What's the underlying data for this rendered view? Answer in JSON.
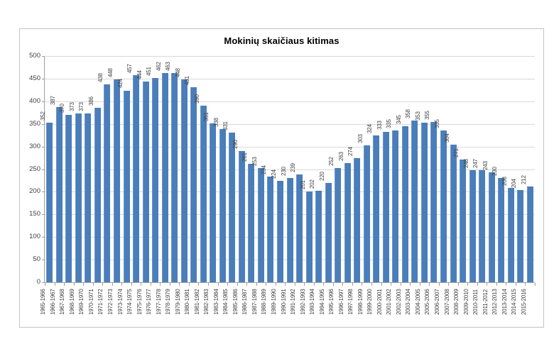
{
  "window": {
    "background": "#ffffff"
  },
  "colors": {
    "bar": "#4a7ebb",
    "grid": "#d9d9d9",
    "axis": "#9e9e9e",
    "frame": "#c3c3c3",
    "text": "#3f3f3f",
    "title": "#000000"
  },
  "chart_data": {
    "type": "bar",
    "title": "Mokinių skaičiaus kitimas",
    "xlabel": "",
    "ylabel": "",
    "legend": "none",
    "grid": true,
    "ylim": [
      0,
      500
    ],
    "yticks": [
      0,
      50,
      100,
      150,
      200,
      250,
      300,
      350,
      400,
      450,
      500
    ],
    "value_labels_rotation": 90,
    "category_labels_rotation": 90,
    "categories": [
      "1965-1966",
      "1966-1967",
      "1967-1968",
      "1968-1969",
      "1969-1970",
      "1970-1971",
      "1971-1972",
      "1972-1973",
      "1973-1974",
      "1974-1975",
      "1975-1976",
      "1976-1977",
      "1977-1978",
      "1978-1979",
      "1979-1980",
      "1980-1981",
      "1981-1982",
      "1982-1983",
      "1983-1984",
      "1984-1985",
      "1985-1986",
      "1986-1987",
      "1987-1988",
      "1988-1989",
      "1989-1990",
      "1990-1991",
      "1991-1992",
      "1992-1993",
      "1993-1994",
      "1994-1995",
      "1995-1996",
      "1996-1997",
      "1997-1998",
      "1998-1999",
      "1999-2000",
      "2000-2001",
      "2001-2002",
      "2002-2003",
      "2003-2004",
      "2004-2005",
      "2005-2006",
      "2006-2007",
      "2007-2008",
      "2008-2009",
      "2009-2010",
      "2010-2011",
      "2011-2012",
      "2012-2013",
      "2013-2014",
      "2014-2015",
      "2015-2016"
    ],
    "values": [
      352,
      387,
      370,
      373,
      373,
      386,
      438,
      448,
      424,
      457,
      444,
      451,
      462,
      463,
      448,
      431,
      390,
      351,
      338,
      331,
      290,
      261,
      253,
      234,
      224,
      230,
      239,
      201,
      202,
      220,
      252,
      263,
      274,
      303,
      324,
      333,
      335,
      345,
      358,
      353,
      355,
      335,
      304,
      271,
      248,
      247,
      243,
      230,
      208,
      204,
      212
    ]
  }
}
